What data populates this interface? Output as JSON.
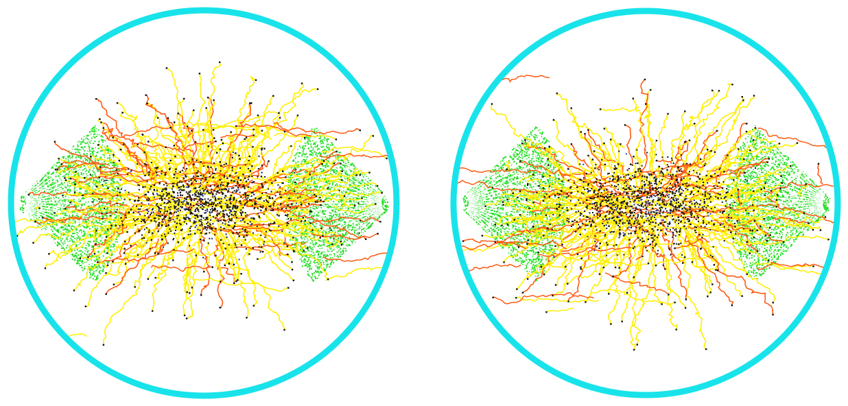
{
  "scene": {
    "background": "#ffffff",
    "colors": {
      "ring": "#19e3ea",
      "track_yellow": "#ffee00",
      "track_orange": "#ff5a12",
      "pole_green": "#22dd22",
      "pole_line": "#ffffff",
      "point_black": "#111111",
      "point_blue": "#2233aa"
    },
    "panels": [
      {
        "name": "left-simulation",
        "seed": 17
      },
      {
        "name": "right-simulation",
        "seed": 91
      }
    ]
  }
}
